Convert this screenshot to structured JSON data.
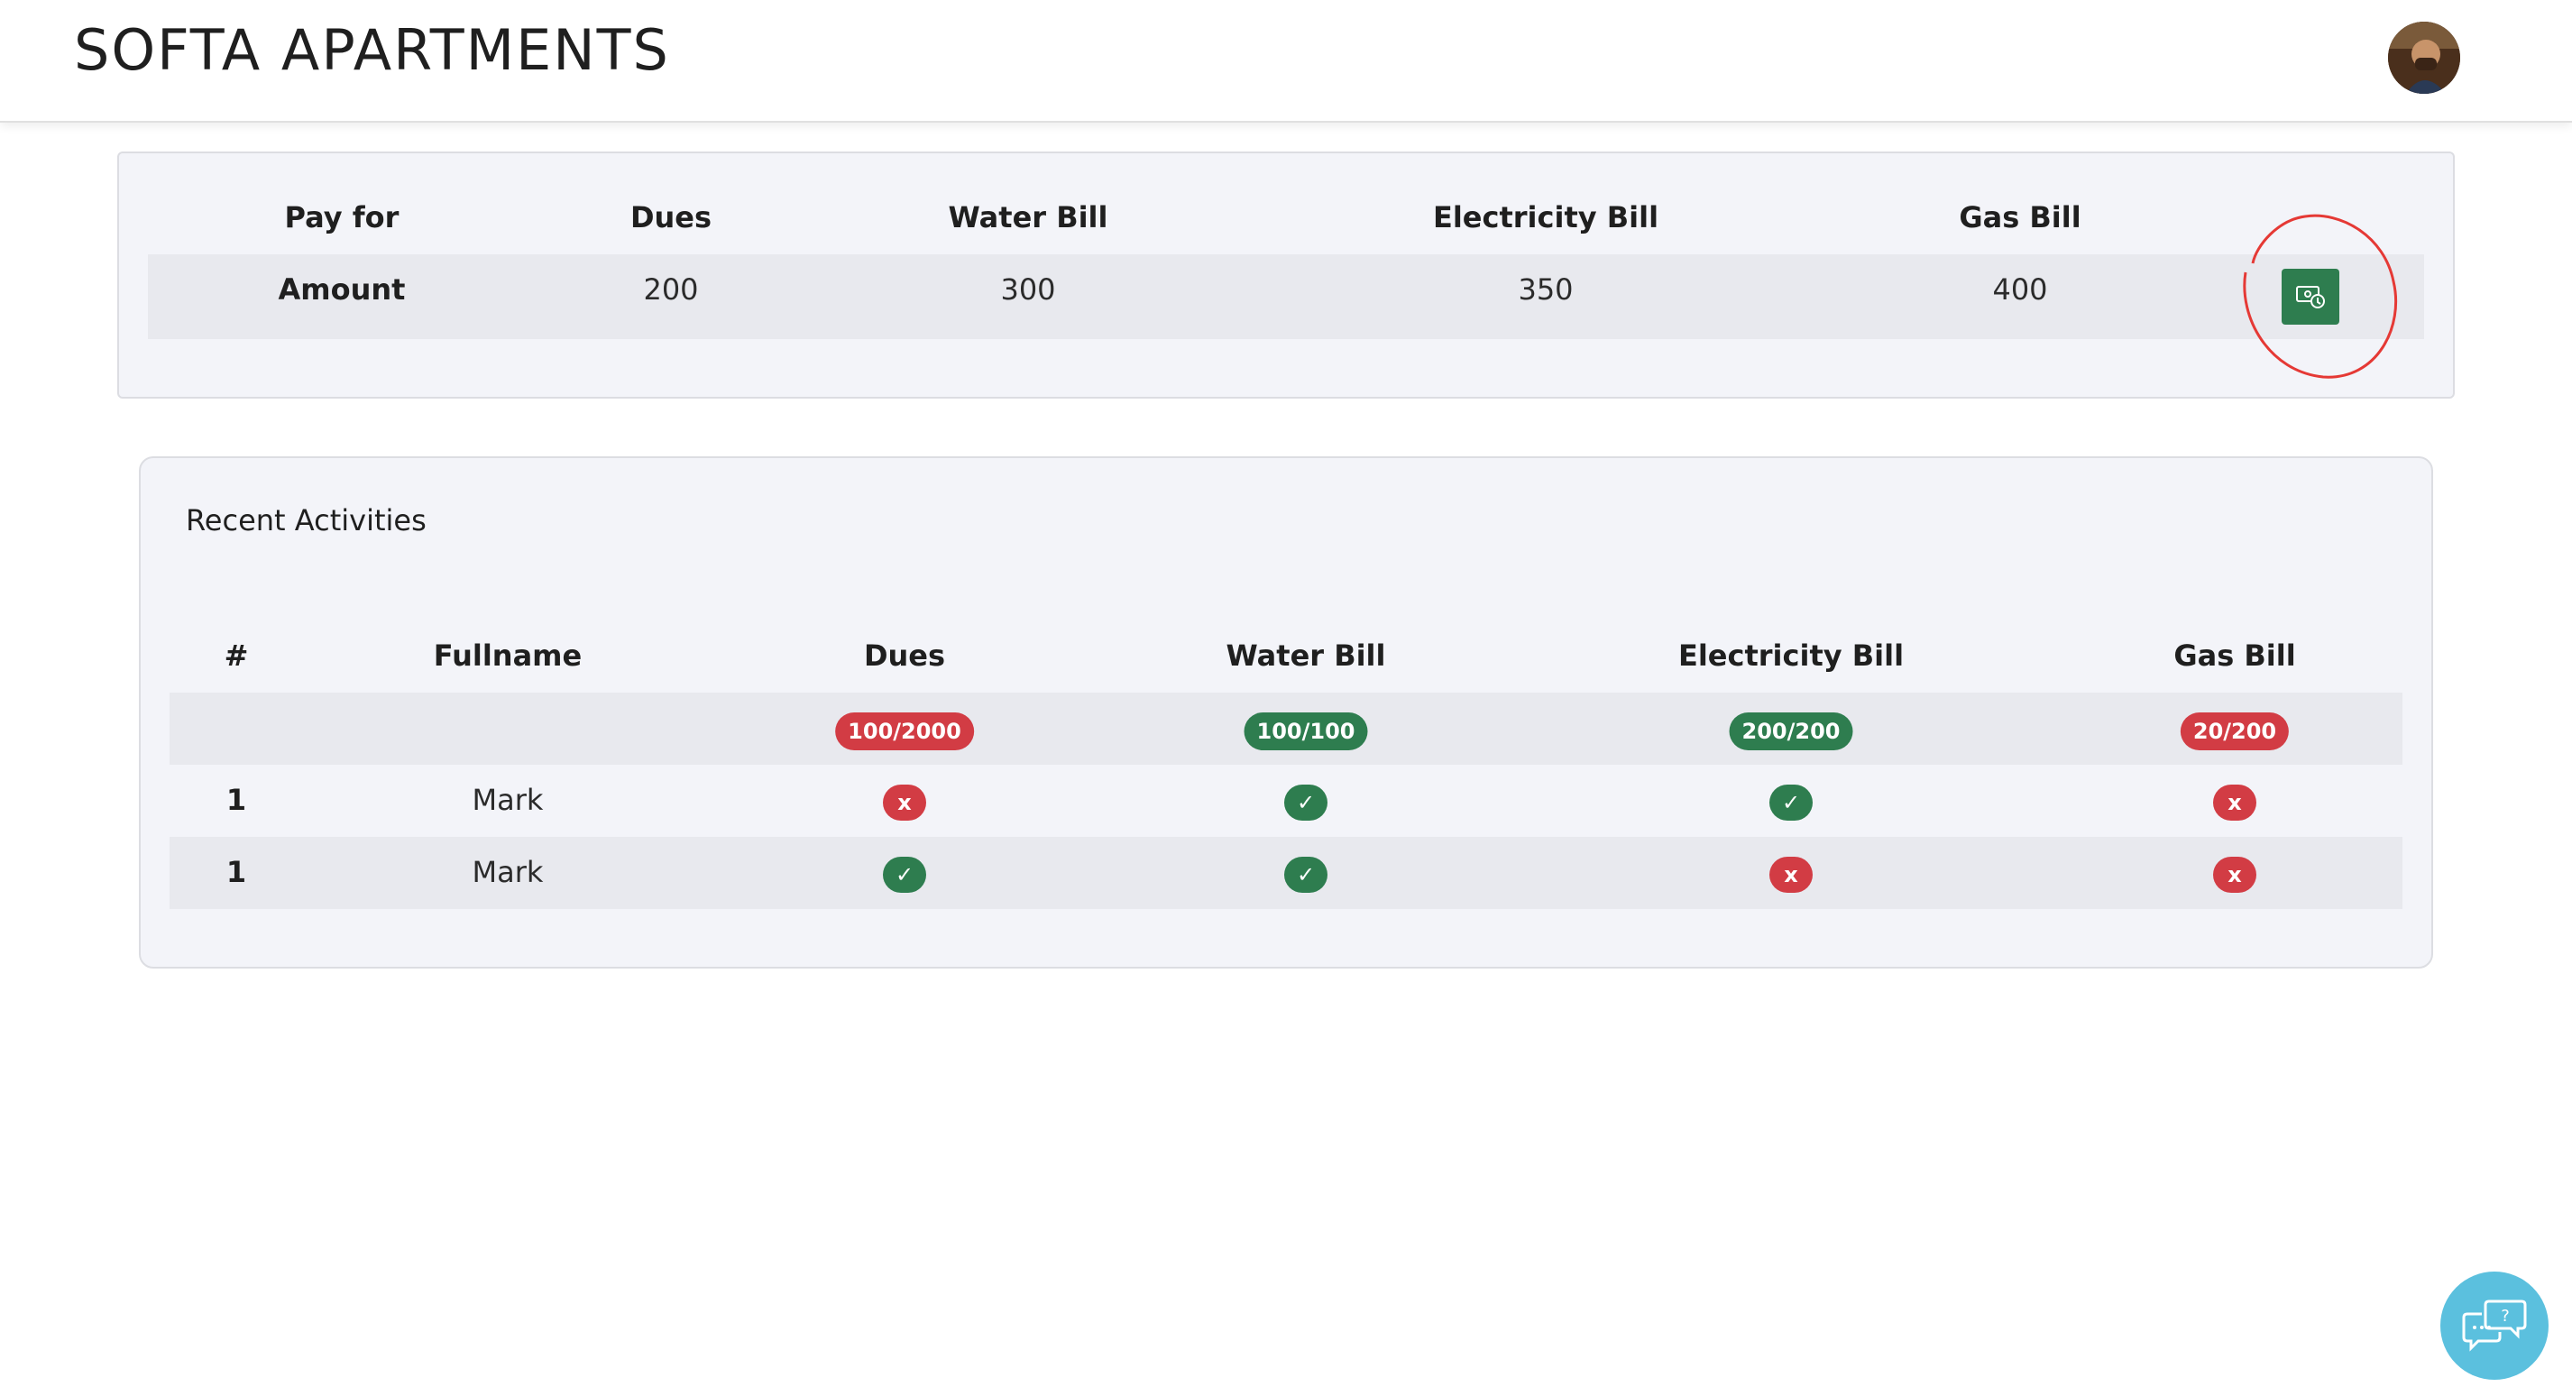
{
  "app": {
    "title": "SOFTA APARTMENTS"
  },
  "payment": {
    "headers": [
      "Pay for",
      "Dues",
      "Water Bill",
      "Electricity Bill",
      "Gas Bill"
    ],
    "row": [
      "Amount",
      "200",
      "300",
      "350",
      "400"
    ],
    "pay_button_icon": "cash-payment-icon"
  },
  "activities": {
    "title": "Recent Activities",
    "headers": [
      "#",
      "Fullname",
      "Dues",
      "Water Bill",
      "Electricity Bill",
      "Gas Bill"
    ],
    "summary": [
      {
        "text": "100/2000",
        "status": "unpaid"
      },
      {
        "text": "100/100",
        "status": "paid"
      },
      {
        "text": "200/200",
        "status": "paid"
      },
      {
        "text": "20/200",
        "status": "unpaid"
      }
    ],
    "rows": [
      {
        "num": "1",
        "name": "Mark",
        "status": [
          "x",
          "✓",
          "✓",
          "x"
        ]
      },
      {
        "num": "1",
        "name": "Mark",
        "status": [
          "✓",
          "✓",
          "x",
          "x"
        ]
      }
    ]
  },
  "colors": {
    "paid": "#2e7d4f",
    "unpaid": "#d23c44",
    "accent": "#5bc0de",
    "annotation": "#e53935"
  },
  "help_button_icon": "help-chat-icon"
}
